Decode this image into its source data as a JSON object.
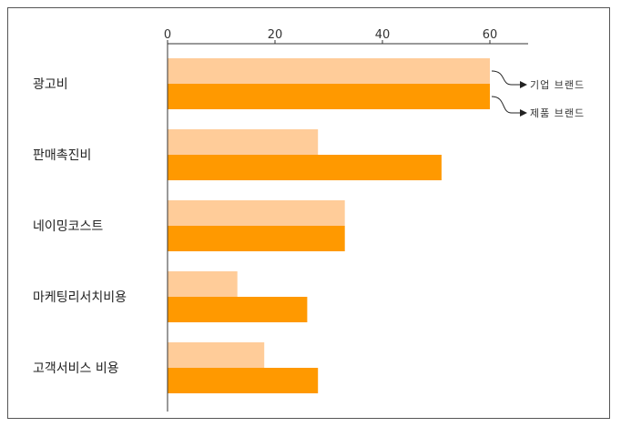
{
  "chart_data": {
    "type": "bar",
    "orientation": "horizontal",
    "categories": [
      "광고비",
      "판매촉진비",
      "네이밍코스트",
      "마케팅리서치비용",
      "고객서비스 비용"
    ],
    "series": [
      {
        "name": "기업 브랜드",
        "values": [
          60,
          28,
          33,
          13,
          18
        ],
        "color": "#FFCC99"
      },
      {
        "name": "제품 브랜드",
        "values": [
          60,
          51,
          33,
          26,
          28
        ],
        "color": "#FF9900"
      }
    ],
    "xlim": [
      0,
      68
    ],
    "xticks": [
      0,
      20,
      40,
      60
    ],
    "tick_labels": [
      "0",
      "20",
      "40",
      "60"
    ],
    "x_axis_position": "top",
    "grid": false,
    "legend_placement": "right, arrow callouts to top bars",
    "title": "",
    "xlabel": "",
    "ylabel": ""
  }
}
